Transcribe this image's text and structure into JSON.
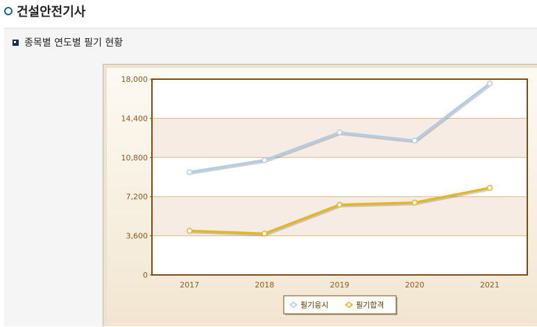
{
  "page": {
    "title": "건설안전기사"
  },
  "section": {
    "title": "종목별 연도별 필기 현황"
  },
  "chart_data": {
    "type": "line",
    "categories": [
      "2017",
      "2018",
      "2019",
      "2020",
      "2021"
    ],
    "series": [
      {
        "name": "필기응시",
        "values": [
          9450,
          10550,
          13100,
          12350,
          17600
        ],
        "color": "#b3cde6"
      },
      {
        "name": "필기합격",
        "values": [
          4050,
          3800,
          6450,
          6650,
          8000
        ],
        "color": "#e3b624"
      }
    ],
    "y_ticks": [
      "18,000",
      "14,400",
      "10,800",
      "7,200",
      "3,600",
      "0"
    ],
    "ylim": [
      0,
      18000
    ],
    "grid": true,
    "legend": "bottom-center"
  },
  "colors": {
    "axis": "#7a4a12",
    "band": "#f7ece3",
    "gridline": "#d4b98c",
    "tick_text": "#8a5a1e",
    "frame": "#c8b48e"
  }
}
